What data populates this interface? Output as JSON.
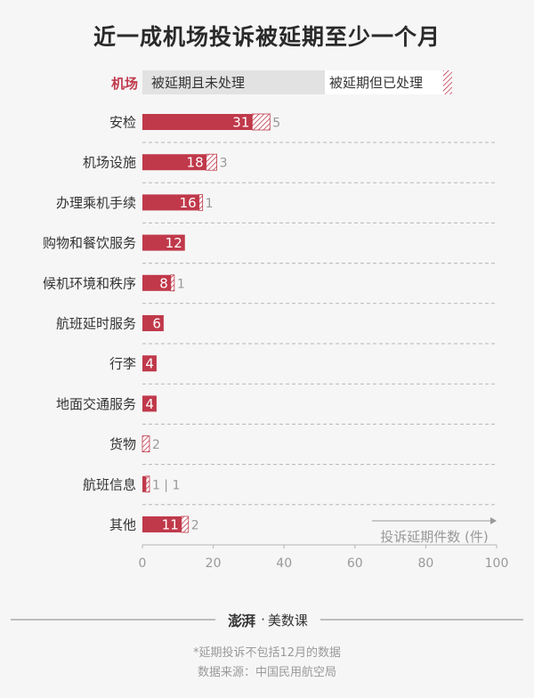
{
  "title": "近一成机场投诉被延期至少一个月",
  "legend": {
    "category_label": "机场",
    "unprocessed_label": "被延期且未处理",
    "processed_label": "被延期但已处理"
  },
  "colors": {
    "accent": "#c0394b",
    "legend_bg": "#e2e2e2",
    "grid": "#b5b5b5",
    "muted": "#999999"
  },
  "chart_data": {
    "type": "bar",
    "orientation": "horizontal",
    "stacked": true,
    "categories": [
      "安检",
      "机场设施",
      "办理乘机手续",
      "购物和餐饮服务",
      "候机环境和秩序",
      "航班延时服务",
      "行李",
      "地面交通服务",
      "货物",
      "航班信息",
      "其他"
    ],
    "series": [
      {
        "name": "被延期且未处理",
        "values": [
          31,
          18,
          16,
          12,
          8,
          6,
          4,
          4,
          0,
          1,
          11
        ]
      },
      {
        "name": "被延期但已处理",
        "values": [
          5,
          3,
          1,
          0,
          1,
          0,
          0,
          0,
          2,
          1,
          2
        ]
      }
    ],
    "xlabel": "投诉延期件数 (件)",
    "xlim": [
      0,
      100
    ],
    "xticks": [
      "0",
      "20",
      "40",
      "60",
      "80",
      "100"
    ],
    "grid": "dashed separators between rows"
  },
  "footer": {
    "logo_stamp": "澎湃",
    "logo_dot": "·",
    "logo_text": "美数课",
    "note": "*延期投诉不包括12月的数据",
    "source": "数据来源：中国民用航空局"
  }
}
